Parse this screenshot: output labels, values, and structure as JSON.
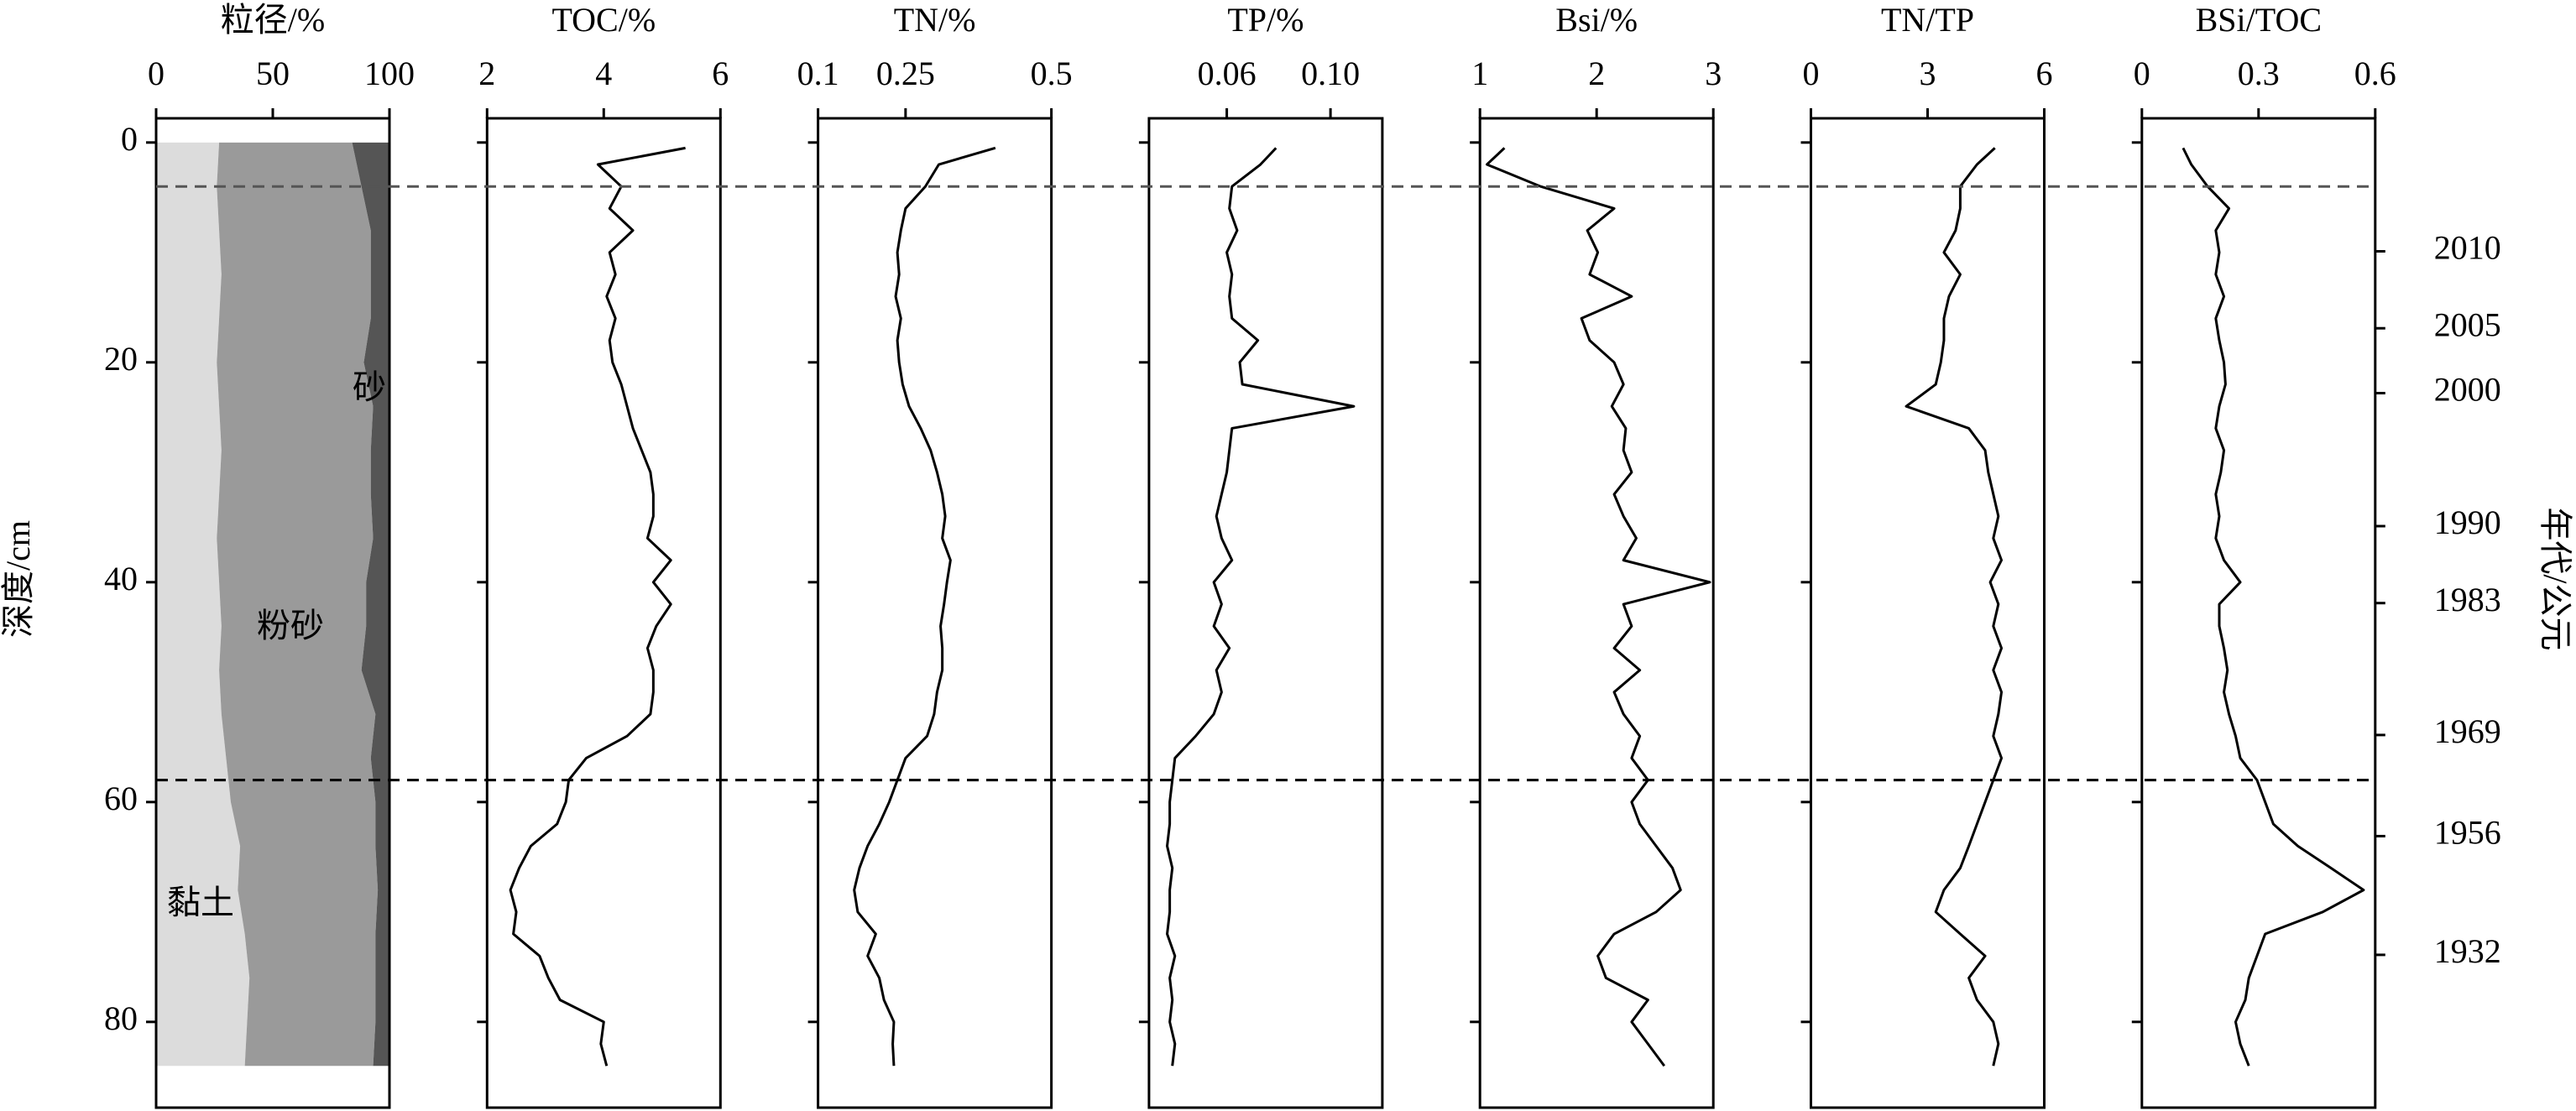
{
  "chart_data": [
    {
      "type": "area",
      "xlabel": "粒径/%",
      "xlim": [
        0,
        100
      ],
      "xticks": [
        0,
        50,
        100
      ],
      "ylim": [
        -2.2,
        87.8
      ],
      "yticks": [
        0,
        20,
        40,
        60,
        80
      ],
      "ylabel": "深度/cm",
      "y": [
        0,
        4,
        8,
        12,
        16,
        20,
        24,
        28,
        32,
        36,
        40,
        44,
        48,
        52,
        56,
        60,
        64,
        68,
        72,
        76,
        80,
        84
      ],
      "series": [
        {
          "name": "黏土",
          "color": "#dcdcdc",
          "values": [
            27,
            26,
            27,
            28,
            27,
            26,
            27,
            28,
            27,
            26,
            27,
            28,
            27,
            28,
            30,
            32,
            36,
            35,
            38,
            40,
            39,
            38
          ]
        },
        {
          "name": "粉砂",
          "color": "#9a9a9a",
          "values": [
            57,
            62,
            65,
            64,
            65,
            63,
            66,
            64,
            65,
            67,
            63,
            62,
            61,
            66,
            62,
            62,
            58,
            60,
            56,
            54,
            55,
            55
          ]
        },
        {
          "name": "砂",
          "color": "#555555",
          "values": [
            16,
            12,
            8,
            8,
            8,
            11,
            7,
            8,
            8,
            7,
            10,
            10,
            12,
            6,
            8,
            6,
            6,
            5,
            6,
            6,
            6,
            7
          ]
        }
      ]
    },
    {
      "type": "line",
      "xlabel": "TOC/%",
      "xlim": [
        2,
        6
      ],
      "xticks": [
        2,
        4,
        6
      ],
      "ylim": [
        -2.2,
        87.8
      ],
      "color": "#000000",
      "y": [
        0.5,
        2,
        4,
        6,
        8,
        10,
        12,
        14,
        16,
        18,
        20,
        22,
        24,
        26,
        28,
        30,
        32,
        34,
        36,
        38,
        40,
        42,
        44,
        46,
        48,
        50,
        52,
        54,
        56,
        58,
        60,
        62,
        64,
        66,
        68,
        70,
        72,
        74,
        76,
        78,
        80,
        82,
        84
      ],
      "values": [
        5.4,
        3.9,
        4.3,
        4.1,
        4.5,
        4.1,
        4.2,
        4.05,
        4.2,
        4.1,
        4.15,
        4.3,
        4.4,
        4.5,
        4.65,
        4.8,
        4.85,
        4.85,
        4.75,
        5.15,
        4.85,
        5.15,
        4.9,
        4.75,
        4.85,
        4.85,
        4.8,
        4.4,
        3.7,
        3.4,
        3.35,
        3.2,
        2.75,
        2.55,
        2.4,
        2.5,
        2.45,
        2.9,
        3.05,
        3.25,
        4.0,
        3.95,
        4.05
      ]
    },
    {
      "type": "line",
      "xlabel": "TN/%",
      "xlim": [
        0.1,
        0.5
      ],
      "xticks": [
        0.1,
        0.25,
        0.5
      ],
      "ylim": [
        -2.2,
        87.8
      ],
      "color": "#000000",
      "y": [
        0.5,
        2,
        4,
        6,
        8,
        10,
        12,
        14,
        16,
        18,
        20,
        22,
        24,
        26,
        28,
        30,
        32,
        34,
        36,
        38,
        40,
        42,
        44,
        46,
        48,
        50,
        52,
        54,
        56,
        58,
        60,
        62,
        64,
        66,
        68,
        70,
        72,
        74,
        76,
        78,
        80,
        82,
        84
      ],
      "values": [
        0.404,
        0.307,
        0.284,
        0.25,
        0.242,
        0.236,
        0.239,
        0.233,
        0.242,
        0.236,
        0.239,
        0.245,
        0.256,
        0.276,
        0.293,
        0.304,
        0.313,
        0.318,
        0.313,
        0.327,
        0.321,
        0.316,
        0.31,
        0.313,
        0.313,
        0.304,
        0.299,
        0.287,
        0.25,
        0.236,
        0.222,
        0.205,
        0.185,
        0.171,
        0.162,
        0.168,
        0.199,
        0.185,
        0.205,
        0.213,
        0.23,
        0.228,
        0.23
      ]
    },
    {
      "type": "line",
      "xlabel": "TP/%",
      "xlim": [
        0.03,
        0.12
      ],
      "xticks": [
        0.06,
        {
          "value": 0.1,
          "label": "0.10"
        }
      ],
      "ylim": [
        -2.2,
        87.8
      ],
      "color": "#000000",
      "y": [
        0.5,
        2,
        4,
        6,
        8,
        10,
        12,
        14,
        16,
        18,
        20,
        22,
        24,
        26,
        28,
        30,
        32,
        34,
        36,
        38,
        40,
        42,
        44,
        46,
        48,
        50,
        52,
        54,
        56,
        58,
        60,
        62,
        64,
        66,
        68,
        70,
        72,
        74,
        76,
        78,
        80,
        82,
        84
      ],
      "values": [
        0.079,
        0.073,
        0.062,
        0.061,
        0.064,
        0.06,
        0.062,
        0.061,
        0.062,
        0.072,
        0.065,
        0.066,
        0.109,
        0.062,
        0.061,
        0.06,
        0.058,
        0.056,
        0.058,
        0.062,
        0.055,
        0.058,
        0.055,
        0.061,
        0.056,
        0.058,
        0.055,
        0.048,
        0.04,
        0.039,
        0.038,
        0.038,
        0.037,
        0.039,
        0.038,
        0.038,
        0.037,
        0.04,
        0.038,
        0.039,
        0.038,
        0.04,
        0.039
      ]
    },
    {
      "type": "line",
      "xlabel": "Bsi/%",
      "xlim": [
        1,
        3
      ],
      "xticks": [
        1,
        2,
        3
      ],
      "ylim": [
        -2.2,
        87.8
      ],
      "color": "#000000",
      "y": [
        0.5,
        2,
        4,
        6,
        8,
        10,
        12,
        14,
        16,
        18,
        20,
        22,
        24,
        26,
        28,
        30,
        32,
        34,
        36,
        38,
        40,
        42,
        44,
        46,
        48,
        50,
        52,
        54,
        56,
        58,
        60,
        62,
        64,
        66,
        68,
        70,
        72,
        74,
        76,
        78,
        80,
        82,
        84
      ],
      "values": [
        1.21,
        1.06,
        1.52,
        2.15,
        1.92,
        2.01,
        1.94,
        2.3,
        1.87,
        1.94,
        2.15,
        2.23,
        2.13,
        2.25,
        2.23,
        2.3,
        2.15,
        2.23,
        2.34,
        2.23,
        2.97,
        2.23,
        2.3,
        2.15,
        2.37,
        2.15,
        2.23,
        2.37,
        2.3,
        2.44,
        2.3,
        2.37,
        2.51,
        2.65,
        2.72,
        2.51,
        2.15,
        2.01,
        2.08,
        2.44,
        2.3,
        2.44,
        2.58
      ]
    },
    {
      "type": "line",
      "xlabel": "TN/TP",
      "xlim": [
        0,
        6
      ],
      "xticks": [
        0,
        3,
        6
      ],
      "ylim": [
        -2.2,
        87.8
      ],
      "color": "#000000",
      "y": [
        0.5,
        2,
        4,
        6,
        8,
        10,
        12,
        14,
        16,
        18,
        20,
        22,
        24,
        26,
        28,
        30,
        32,
        34,
        36,
        38,
        40,
        42,
        44,
        46,
        48,
        50,
        52,
        54,
        56,
        58,
        60,
        62,
        64,
        66,
        68,
        70,
        72,
        74,
        76,
        78,
        80,
        82,
        84
      ],
      "values": [
        4.73,
        4.27,
        3.84,
        3.84,
        3.72,
        3.42,
        3.84,
        3.55,
        3.42,
        3.42,
        3.34,
        3.21,
        2.45,
        4.06,
        4.48,
        4.56,
        4.69,
        4.82,
        4.69,
        4.9,
        4.61,
        4.82,
        4.69,
        4.9,
        4.69,
        4.9,
        4.82,
        4.69,
        4.9,
        4.69,
        4.48,
        4.27,
        4.06,
        3.84,
        3.42,
        3.21,
        3.84,
        4.48,
        4.06,
        4.27,
        4.69,
        4.82,
        4.69
      ]
    },
    {
      "type": "line",
      "xlabel": "BSi/TOC",
      "xlim": [
        0,
        0.6
      ],
      "xticks": [
        0,
        0.3,
        0.6
      ],
      "ylim": [
        -2.2,
        87.8
      ],
      "color": "#000000",
      "y": [
        0.5,
        2,
        4,
        6,
        8,
        10,
        12,
        14,
        16,
        18,
        20,
        22,
        24,
        26,
        28,
        30,
        32,
        34,
        36,
        38,
        40,
        42,
        44,
        46,
        48,
        50,
        52,
        54,
        56,
        58,
        60,
        62,
        64,
        66,
        68,
        70,
        72,
        74,
        76,
        78,
        80,
        82,
        84
      ],
      "values": [
        0.106,
        0.127,
        0.169,
        0.224,
        0.19,
        0.199,
        0.19,
        0.211,
        0.19,
        0.199,
        0.211,
        0.215,
        0.199,
        0.19,
        0.211,
        0.203,
        0.19,
        0.199,
        0.19,
        0.211,
        0.253,
        0.199,
        0.199,
        0.211,
        0.22,
        0.211,
        0.224,
        0.241,
        0.253,
        0.296,
        0.317,
        0.338,
        0.401,
        0.486,
        0.57,
        0.465,
        0.317,
        0.296,
        0.275,
        0.266,
        0.241,
        0.253,
        0.275
      ],
      "y2label": "年代/公元",
      "age_ticks": [
        {
          "depth": 9.9,
          "year": 2010
        },
        {
          "depth": 16.9,
          "year": 2005
        },
        {
          "depth": 22.8,
          "year": 2000
        },
        {
          "depth": 34.9,
          "year": 1990
        },
        {
          "depth": 41.9,
          "year": 1983
        },
        {
          "depth": 53.9,
          "year": 1969
        },
        {
          "depth": 63.1,
          "year": 1956
        },
        {
          "depth": 73.9,
          "year": 1932
        }
      ]
    }
  ],
  "reference_lines": [
    {
      "depth": 4,
      "color": "#555555"
    },
    {
      "depth": 58,
      "color": "#000000"
    }
  ]
}
